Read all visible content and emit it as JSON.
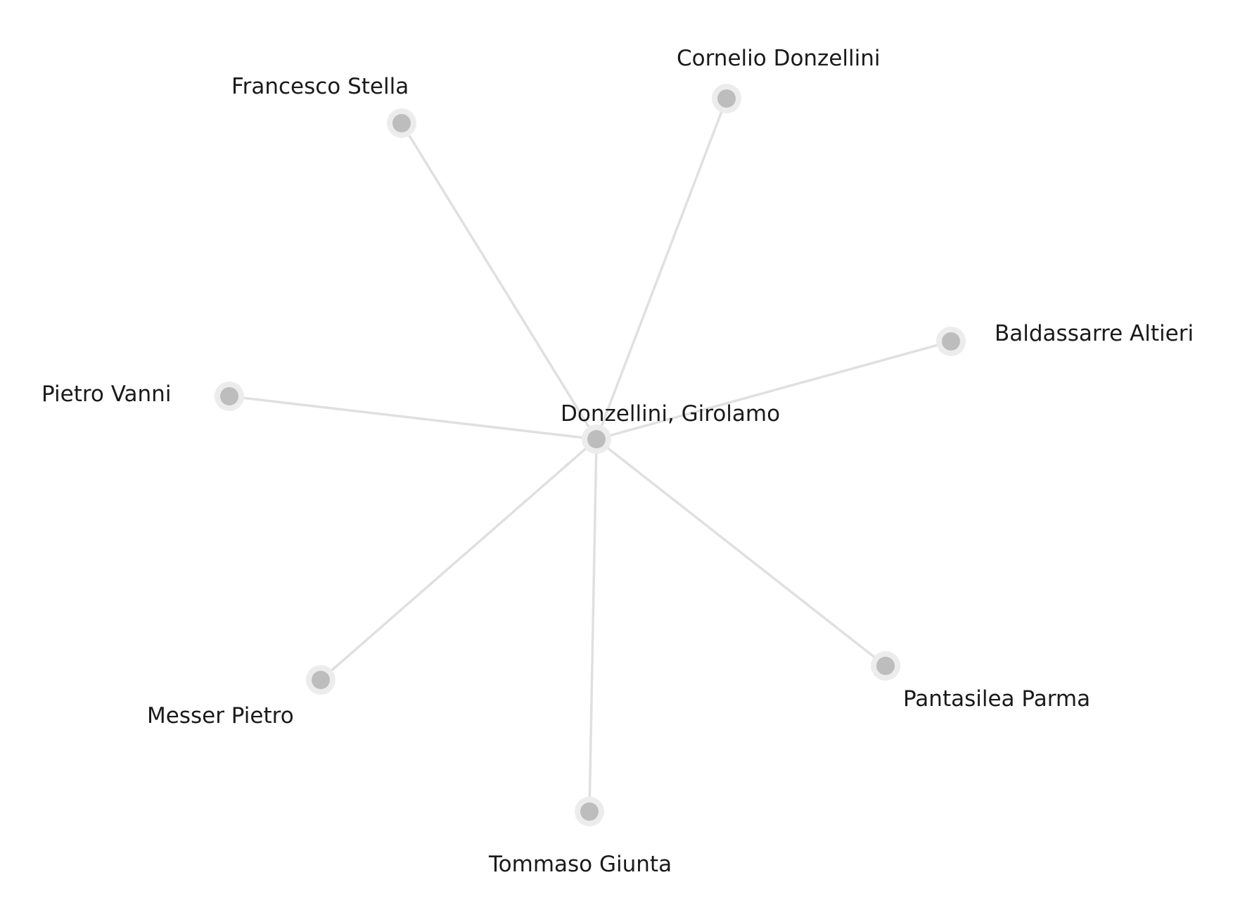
{
  "graph": {
    "center": {
      "id": "center",
      "label": "Donzellini, Girolamo"
    },
    "nodes": [
      {
        "id": "francesco-stella",
        "label": "Francesco Stella"
      },
      {
        "id": "cornelio-donzellini",
        "label": "Cornelio Donzellini"
      },
      {
        "id": "baldassarre-altieri",
        "label": "Baldassarre Altieri"
      },
      {
        "id": "pietro-vanni",
        "label": "Pietro Vanni"
      },
      {
        "id": "messer-pietro",
        "label": "Messer Pietro"
      },
      {
        "id": "tommaso-giunta",
        "label": "Tommaso Giunta"
      },
      {
        "id": "pantasilea-parma",
        "label": "Pantasilea Parma"
      }
    ],
    "edges": [
      [
        "center",
        "francesco-stella"
      ],
      [
        "center",
        "cornelio-donzellini"
      ],
      [
        "center",
        "baldassarre-altieri"
      ],
      [
        "center",
        "pietro-vanni"
      ],
      [
        "center",
        "messer-pietro"
      ],
      [
        "center",
        "tommaso-giunta"
      ],
      [
        "center",
        "pantasilea-parma"
      ]
    ]
  },
  "colors": {
    "edge": "#e0e0e0",
    "node_fill": "#bdbdbd",
    "node_halo": "#ececec",
    "label": "#1a1a1a"
  }
}
